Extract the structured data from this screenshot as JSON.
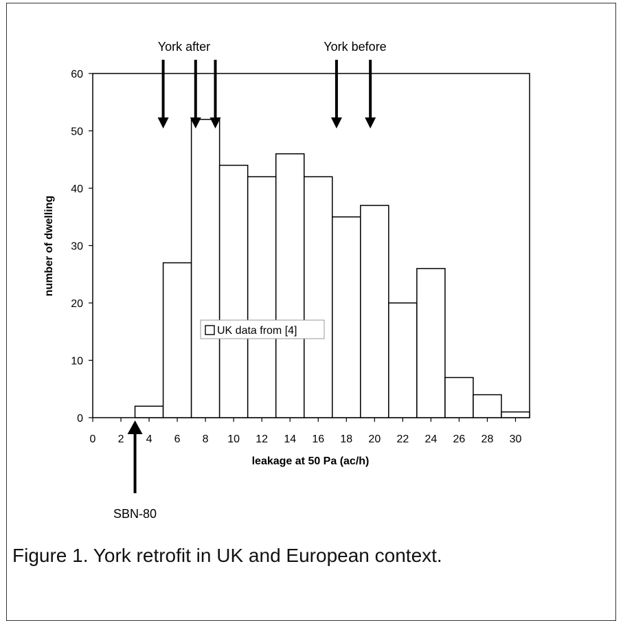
{
  "chart_data": {
    "type": "bar",
    "title": "",
    "xlabel": "leakage at 50 Pa (ac/h)",
    "ylabel": "number of dwelling",
    "x_ticks": [
      "0",
      "2",
      "4",
      "6",
      "8",
      "10",
      "12",
      "14",
      "16",
      "18",
      "20",
      "22",
      "24",
      "26",
      "28",
      "30"
    ],
    "xlim": [
      0,
      31
    ],
    "ylim": [
      0,
      60
    ],
    "y_ticks": [
      "0",
      "10",
      "20",
      "30",
      "40",
      "50",
      "60"
    ],
    "grid": false,
    "bin_width": 2,
    "series": [
      {
        "name": "UK data from [4]",
        "bins": [
          {
            "x_start": 3,
            "value": 2
          },
          {
            "x_start": 5,
            "value": 27
          },
          {
            "x_start": 7,
            "value": 52
          },
          {
            "x_start": 9,
            "value": 44
          },
          {
            "x_start": 11,
            "value": 42
          },
          {
            "x_start": 13,
            "value": 46
          },
          {
            "x_start": 15,
            "value": 42
          },
          {
            "x_start": 17,
            "value": 35
          },
          {
            "x_start": 19,
            "value": 37
          },
          {
            "x_start": 21,
            "value": 20
          },
          {
            "x_start": 23,
            "value": 26
          },
          {
            "x_start": 25,
            "value": 7
          },
          {
            "x_start": 27,
            "value": 4
          },
          {
            "x_start": 29,
            "value": 1
          }
        ]
      }
    ],
    "legend": {
      "label": "UK data from [4]",
      "placement": "center"
    },
    "annotations": [
      {
        "label": "York after",
        "arrows_x": [
          5,
          7.3,
          8.7
        ]
      },
      {
        "label": "York before",
        "arrows_x": [
          17.3,
          19.7
        ]
      },
      {
        "label": "SBN-80",
        "arrows_x": [
          3
        ]
      }
    ]
  },
  "caption": "Figure 1.  York retrofit in UK and European context."
}
